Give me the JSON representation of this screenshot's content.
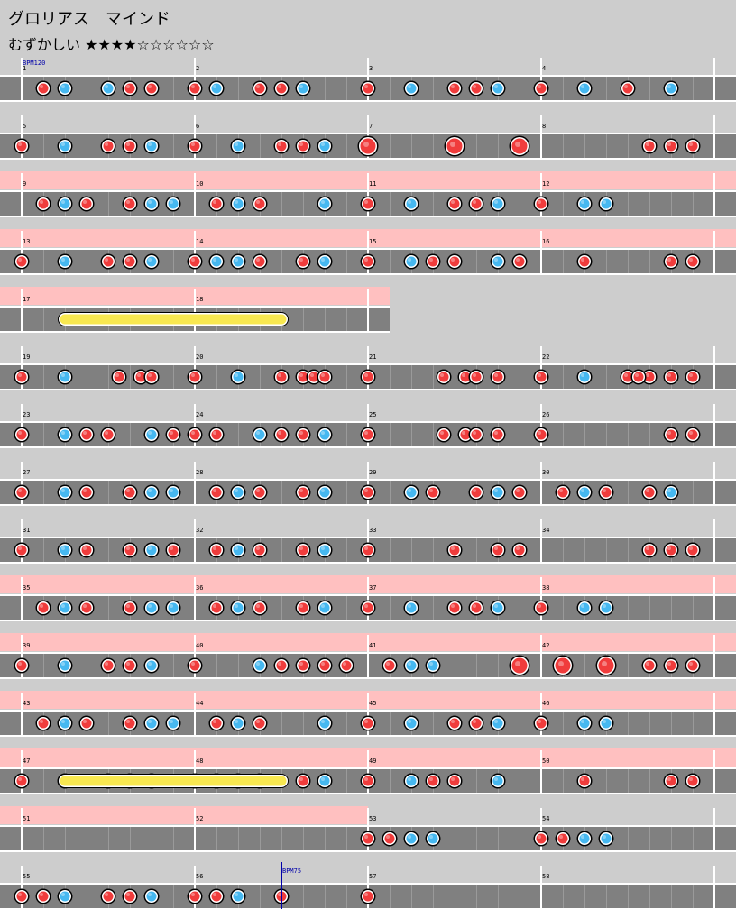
{
  "song": {
    "title": "グロリアス　マインド",
    "difficulty_label": "むずかしい",
    "stars": "★★★★☆☆☆☆☆☆"
  },
  "colors": {
    "background": "#cdcdcd",
    "lane": "#808080",
    "lane_line": "#ffffff",
    "gogo": "#ffc0c0",
    "don": "#f03c3c",
    "ka": "#46b8f0",
    "drumroll": "#f8e850",
    "bpm_marker": "#0000aa"
  },
  "bpm_markers": [
    {
      "measure": 1,
      "offset": 0,
      "label": "BPM120"
    },
    {
      "measure": 56,
      "offset": 4,
      "label": "BPM75"
    }
  ],
  "rows": [
    {
      "gogo": false,
      "measures": [
        {
          "n": "1",
          "notes": "01202110"
        },
        {
          "n": "2",
          "notes": "12011200"
        },
        {
          "n": "3",
          "notes": "10201120"
        },
        {
          "n": "4",
          "notes": "10201020"
        }
      ]
    },
    {
      "gogo": false,
      "measures": [
        {
          "n": "5",
          "notes": "10201120"
        },
        {
          "n": "6",
          "notes": "10201120"
        },
        {
          "n": "7",
          "notes": "30003003"
        },
        {
          "n": "8",
          "notes": "00000111"
        }
      ]
    },
    {
      "gogo": true,
      "measures": [
        {
          "n": "9",
          "notes": "01210122"
        },
        {
          "n": "10",
          "notes": "01210020"
        },
        {
          "n": "11",
          "notes": "10201120"
        },
        {
          "n": "12",
          "notes": "10220000"
        }
      ]
    },
    {
      "gogo": true,
      "measures": [
        {
          "n": "13",
          "notes": "10201120"
        },
        {
          "n": "14",
          "notes": "12210120"
        },
        {
          "n": "15",
          "notes": "10211021"
        },
        {
          "n": "16",
          "notes": "00100011"
        }
      ]
    },
    {
      "gogo": true,
      "measures": [
        {
          "n": "17",
          "notes": ""
        },
        {
          "n": "18",
          "notes": ""
        }
      ]
    },
    {
      "gogo": false,
      "measures": [
        {
          "n": "19",
          "notes": "1020",
          "x": [
            {
              "o": 4.5,
              "t": 1
            },
            {
              "o": 5.5,
              "t": 1
            },
            {
              "o": 6,
              "t": 1
            },
            {
              "o": 6,
              "t": 1
            }
          ]
        },
        {
          "n": "20",
          "notes": "10201100",
          "x": [
            {
              "o": 5.5,
              "t": 1
            },
            {
              "o": 6,
              "t": 1
            }
          ]
        },
        {
          "n": "21",
          "notes": "10",
          "x": [
            {
              "o": 3.5,
              "t": 1
            },
            {
              "o": 4.5,
              "t": 1
            },
            {
              "o": 5,
              "t": 1
            },
            {
              "o": 6,
              "t": 1
            }
          ]
        },
        {
          "n": "22",
          "notes": "10201111",
          "x": [
            {
              "o": 4.5,
              "t": 1
            }
          ]
        }
      ]
    },
    {
      "gogo": false,
      "measures": [
        {
          "n": "23",
          "notes": "10211021"
        },
        {
          "n": "24",
          "notes": "11021120"
        },
        {
          "n": "25",
          "notes": "10",
          "x": [
            {
              "o": 3.5,
              "t": 1
            },
            {
              "o": 4.5,
              "t": 1
            },
            {
              "o": 5,
              "t": 1
            },
            {
              "o": 6,
              "t": 1
            }
          ]
        },
        {
          "n": "26",
          "notes": "10000011"
        }
      ]
    },
    {
      "gogo": false,
      "measures": [
        {
          "n": "27",
          "notes": "10210122"
        },
        {
          "n": "28",
          "notes": "01210120"
        },
        {
          "n": "29",
          "notes": "10210121"
        },
        {
          "n": "30",
          "notes": "01210120"
        }
      ]
    },
    {
      "gogo": false,
      "measures": [
        {
          "n": "31",
          "notes": "10210121"
        },
        {
          "n": "32",
          "notes": "01210120"
        },
        {
          "n": "33",
          "notes": "10001011"
        },
        {
          "n": "34",
          "notes": "00000111"
        }
      ]
    },
    {
      "gogo": true,
      "measures": [
        {
          "n": "35",
          "notes": "01210122"
        },
        {
          "n": "36",
          "notes": "01210120"
        },
        {
          "n": "37",
          "notes": "10201120"
        },
        {
          "n": "38",
          "notes": "10220000"
        }
      ]
    },
    {
      "gogo": true,
      "measures": [
        {
          "n": "39",
          "notes": "10201120"
        },
        {
          "n": "40",
          "notes": "10021111"
        },
        {
          "n": "41",
          "notes": "01220003"
        },
        {
          "n": "42",
          "notes": "03030111"
        }
      ]
    },
    {
      "gogo": true,
      "measures": [
        {
          "n": "43",
          "notes": "01210122"
        },
        {
          "n": "44",
          "notes": "01210020"
        },
        {
          "n": "45",
          "notes": "10201120"
        },
        {
          "n": "46",
          "notes": "10220000"
        }
      ]
    },
    {
      "gogo": true,
      "measures": [
        {
          "n": "47",
          "notes": "10201120"
        },
        {
          "n": "48",
          "notes": "12220120"
        },
        {
          "n": "49",
          "notes": "10211020"
        },
        {
          "n": "50",
          "notes": "00100011"
        }
      ]
    },
    {
      "gogo": true,
      "gogo_until": 17,
      "measures": [
        {
          "n": "51",
          "notes": ""
        },
        {
          "n": "52",
          "notes": ""
        },
        {
          "n": "53",
          "notes": "11220000"
        },
        {
          "n": "54",
          "notes": "11220000"
        }
      ]
    },
    {
      "gogo": false,
      "measures": [
        {
          "n": "55",
          "notes": "11201120"
        },
        {
          "n": "56",
          "notes": "11201000"
        },
        {
          "n": "57",
          "notes": "10000000"
        },
        {
          "n": "58",
          "notes": "00000000"
        }
      ]
    }
  ],
  "drumrolls": [
    {
      "row": 4,
      "start_measure": 0,
      "start_offset": 2,
      "end_measure": 1,
      "end_offset": 4
    },
    {
      "row": 12,
      "start_measure": 0,
      "start_offset": 2,
      "end_measure": 1,
      "end_offset": 4
    }
  ]
}
